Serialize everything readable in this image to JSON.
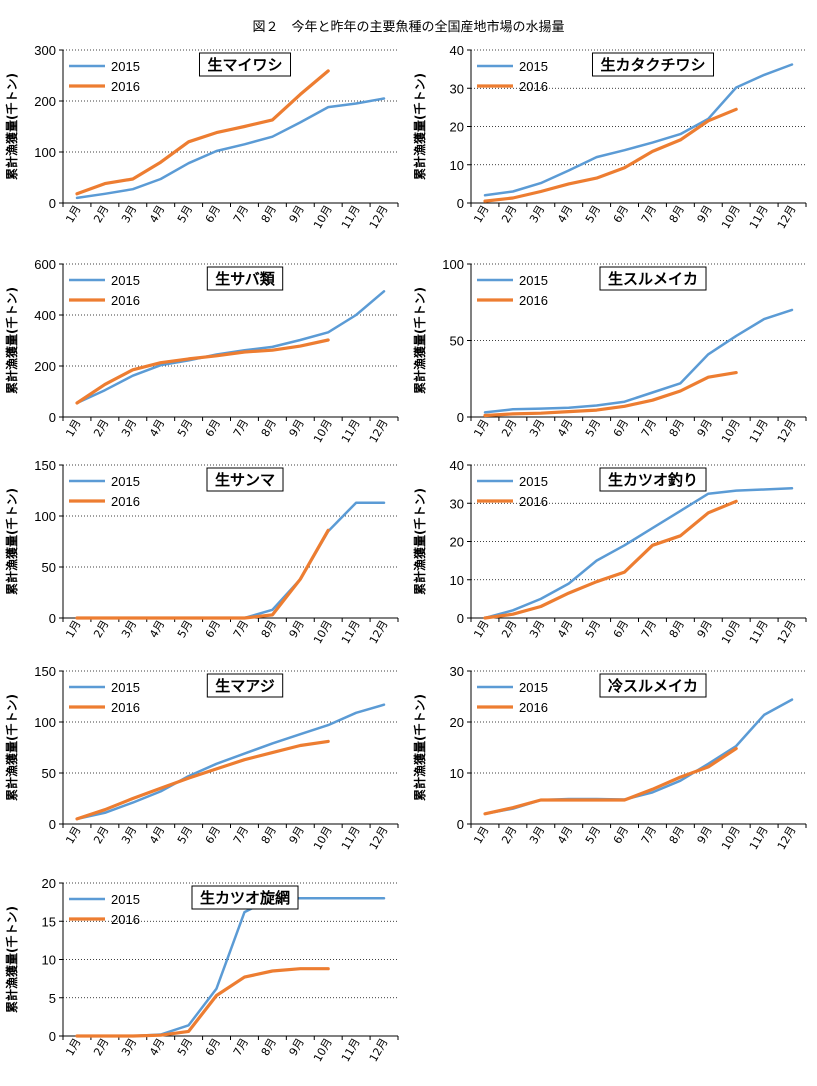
{
  "page_title": "図２　今年と昨年の主要魚種の全国産地市場の水揚量",
  "colors": {
    "2015": "#5B9BD5",
    "2016": "#ED7D31"
  },
  "chart_data": [
    {
      "type": "line",
      "title": "生マイワシ",
      "ylabel": "累計漁獲量(千トン)",
      "categories": [
        "1月",
        "2月",
        "3月",
        "4月",
        "5月",
        "6月",
        "7月",
        "8月",
        "9月",
        "10月",
        "11月",
        "12月"
      ],
      "ylim": [
        0,
        300
      ],
      "yticks": [
        0,
        100,
        200,
        300
      ],
      "grid": "horizontal-dotted",
      "legend": "top-left",
      "series": [
        {
          "name": "2015",
          "values": [
            10,
            18,
            27,
            47,
            78,
            102,
            115,
            130,
            158,
            188,
            195,
            205
          ]
        },
        {
          "name": "2016",
          "values": [
            18,
            38,
            47,
            80,
            120,
            138,
            150,
            163,
            213,
            259,
            null,
            null
          ]
        }
      ]
    },
    {
      "type": "line",
      "title": "生カタクチワシ",
      "ylabel": "累計漁獲量(千トン)",
      "categories": [
        "1月",
        "2月",
        "3月",
        "4月",
        "5月",
        "6月",
        "7月",
        "8月",
        "9月",
        "10月",
        "11月",
        "12月"
      ],
      "ylim": [
        0,
        40
      ],
      "yticks": [
        0,
        10,
        20,
        30,
        40
      ],
      "grid": "horizontal-dotted",
      "legend": "top-left",
      "series": [
        {
          "name": "2015",
          "values": [
            2,
            3,
            5.2,
            8.5,
            12,
            13.8,
            15.8,
            18,
            22,
            30.2,
            33.5,
            36.2
          ]
        },
        {
          "name": "2016",
          "values": [
            0.5,
            1.3,
            3,
            5,
            6.5,
            9.2,
            13.5,
            16.5,
            21.5,
            24.5,
            null,
            null
          ]
        }
      ]
    },
    {
      "type": "line",
      "title": "生サバ類",
      "ylabel": "累計漁獲量(千トン)",
      "categories": [
        "1月",
        "2月",
        "3月",
        "4月",
        "5月",
        "6月",
        "7月",
        "8月",
        "9月",
        "10月",
        "11月",
        "12月"
      ],
      "ylim": [
        0,
        600
      ],
      "yticks": [
        0,
        200,
        400,
        600
      ],
      "grid": "horizontal-dotted",
      "legend": "top-left",
      "series": [
        {
          "name": "2015",
          "values": [
            55,
            105,
            162,
            203,
            222,
            245,
            262,
            275,
            302,
            332,
            400,
            493
          ]
        },
        {
          "name": "2016",
          "values": [
            55,
            128,
            185,
            213,
            228,
            240,
            255,
            262,
            278,
            302,
            null,
            null
          ]
        }
      ]
    },
    {
      "type": "line",
      "title": "生スルメイカ",
      "ylabel": "累計漁獲量(千トン)",
      "categories": [
        "1月",
        "2月",
        "3月",
        "4月",
        "5月",
        "6月",
        "7月",
        "8月",
        "9月",
        "10月",
        "11月",
        "12月"
      ],
      "ylim": [
        0,
        100
      ],
      "yticks": [
        0,
        50,
        100
      ],
      "grid": "horizontal-dotted",
      "legend": "top-left",
      "series": [
        {
          "name": "2015",
          "values": [
            3,
            5,
            5.5,
            6,
            7.5,
            10,
            16,
            22,
            41,
            53,
            64,
            70
          ]
        },
        {
          "name": "2016",
          "values": [
            1,
            2,
            2.5,
            3.5,
            4.5,
            7,
            11,
            17,
            26,
            29,
            null,
            null
          ]
        }
      ]
    },
    {
      "type": "line",
      "title": "生サンマ",
      "ylabel": "累計漁獲量(千トン)",
      "categories": [
        "1月",
        "2月",
        "3月",
        "4月",
        "5月",
        "6月",
        "7月",
        "8月",
        "9月",
        "10月",
        "11月",
        "12月"
      ],
      "ylim": [
        0,
        150
      ],
      "yticks": [
        0,
        50,
        100,
        150
      ],
      "grid": "horizontal-dotted",
      "legend": "top-left",
      "series": [
        {
          "name": "2015",
          "values": [
            0,
            0,
            0,
            0,
            0,
            0,
            0,
            8,
            38,
            85,
            113,
            113
          ]
        },
        {
          "name": "2016",
          "values": [
            0,
            0,
            0,
            0,
            0,
            0,
            0,
            3,
            38,
            86,
            null,
            null
          ]
        }
      ]
    },
    {
      "type": "line",
      "title": "生カツオ釣り",
      "ylabel": "累計漁獲量(千トン)",
      "categories": [
        "1月",
        "2月",
        "3月",
        "4月",
        "5月",
        "6月",
        "7月",
        "8月",
        "9月",
        "10月",
        "11月",
        "12月"
      ],
      "ylim": [
        0,
        40
      ],
      "yticks": [
        0,
        10,
        20,
        30,
        40
      ],
      "grid": "horizontal-dotted",
      "legend": "top-left",
      "series": [
        {
          "name": "2015",
          "values": [
            0,
            2,
            5,
            9,
            15,
            19,
            23.5,
            28,
            32.5,
            33.3,
            33.6,
            33.9
          ]
        },
        {
          "name": "2016",
          "values": [
            0,
            1,
            3,
            6.5,
            9.5,
            12,
            19,
            21.5,
            27.5,
            30.5,
            null,
            null
          ]
        }
      ]
    },
    {
      "type": "line",
      "title": "生マアジ",
      "ylabel": "累計漁獲量(千トン)",
      "categories": [
        "1月",
        "2月",
        "3月",
        "4月",
        "5月",
        "6月",
        "7月",
        "8月",
        "9月",
        "10月",
        "11月",
        "12月"
      ],
      "ylim": [
        0,
        150
      ],
      "yticks": [
        0,
        50,
        100,
        150
      ],
      "grid": "horizontal-dotted",
      "legend": "top-left",
      "series": [
        {
          "name": "2015",
          "values": [
            5,
            11,
            21,
            32,
            47,
            59,
            69,
            79,
            88,
            97,
            109,
            117
          ]
        },
        {
          "name": "2016",
          "values": [
            5,
            14,
            25,
            35,
            45,
            54,
            63,
            70,
            77,
            81,
            null,
            null
          ]
        }
      ]
    },
    {
      "type": "line",
      "title": "冷スルメイカ",
      "ylabel": "累計漁獲量(千トン)",
      "categories": [
        "1月",
        "2月",
        "3月",
        "4月",
        "5月",
        "6月",
        "7月",
        "8月",
        "9月",
        "10月",
        "11月",
        "12月"
      ],
      "ylim": [
        0,
        30
      ],
      "yticks": [
        0,
        10,
        20,
        30
      ],
      "grid": "horizontal-dotted",
      "legend": "top-left",
      "series": [
        {
          "name": "2015",
          "values": [
            2,
            3,
            4.7,
            4.9,
            4.9,
            4.8,
            6.2,
            8.5,
            11.8,
            15.3,
            21.4,
            24.4
          ]
        },
        {
          "name": "2016",
          "values": [
            2,
            3.2,
            4.7,
            4.7,
            4.7,
            4.7,
            6.8,
            9.2,
            11.2,
            14.8,
            null,
            null
          ]
        }
      ]
    },
    {
      "type": "line",
      "title": "生カツオ旋網",
      "ylabel": "累計漁獲量(千トン)",
      "categories": [
        "1月",
        "2月",
        "3月",
        "4月",
        "5月",
        "6月",
        "7月",
        "8月",
        "9月",
        "10月",
        "11月",
        "12月"
      ],
      "ylim": [
        0,
        20
      ],
      "yticks": [
        0,
        5,
        10,
        15,
        20
      ],
      "grid": "horizontal-dotted",
      "legend": "top-left",
      "series": [
        {
          "name": "2015",
          "values": [
            0,
            0,
            0,
            0.2,
            1.4,
            6.2,
            16.2,
            18,
            18,
            18,
            18,
            18
          ]
        },
        {
          "name": "2016",
          "values": [
            0,
            0,
            0,
            0.1,
            0.6,
            5.3,
            7.7,
            8.5,
            8.8,
            8.8,
            null,
            null
          ]
        }
      ]
    }
  ]
}
